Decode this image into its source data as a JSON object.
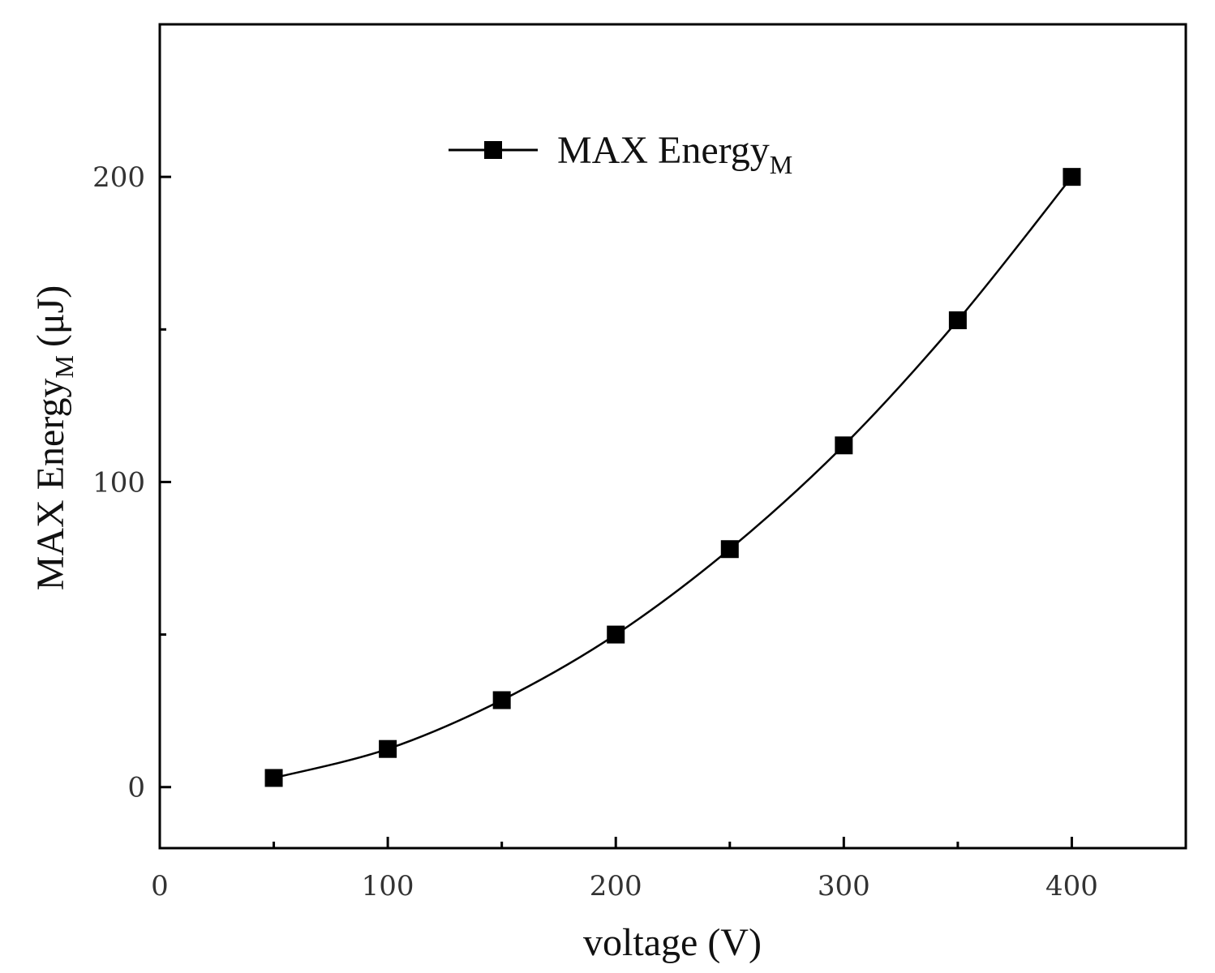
{
  "chart_data": {
    "type": "line",
    "title": "",
    "xlabel": "voltage (V)",
    "ylabel": "MAX Energy",
    "ylabel_subscript": "M",
    "ylabel_unit": "(μJ)",
    "xlim": [
      0,
      450
    ],
    "ylim": [
      -20,
      250
    ],
    "x_ticks": [
      0,
      100,
      200,
      300,
      400
    ],
    "x_tick_labels": [
      "0",
      "100",
      "200",
      "300",
      "400"
    ],
    "x_minor_ticks": [
      50,
      150,
      250,
      350
    ],
    "y_ticks": [
      0,
      100,
      200
    ],
    "y_tick_labels": [
      "0",
      "100",
      "200"
    ],
    "y_minor_ticks": [
      50,
      150
    ],
    "grid": false,
    "legend_position": "top-center",
    "series": [
      {
        "name": "MAX Energy",
        "name_subscript": "M",
        "marker": "square",
        "color": "#000000",
        "x": [
          50,
          100,
          150,
          200,
          250,
          300,
          350,
          400
        ],
        "values": [
          3,
          12.5,
          28.5,
          50,
          78,
          112,
          153,
          200
        ]
      }
    ]
  }
}
